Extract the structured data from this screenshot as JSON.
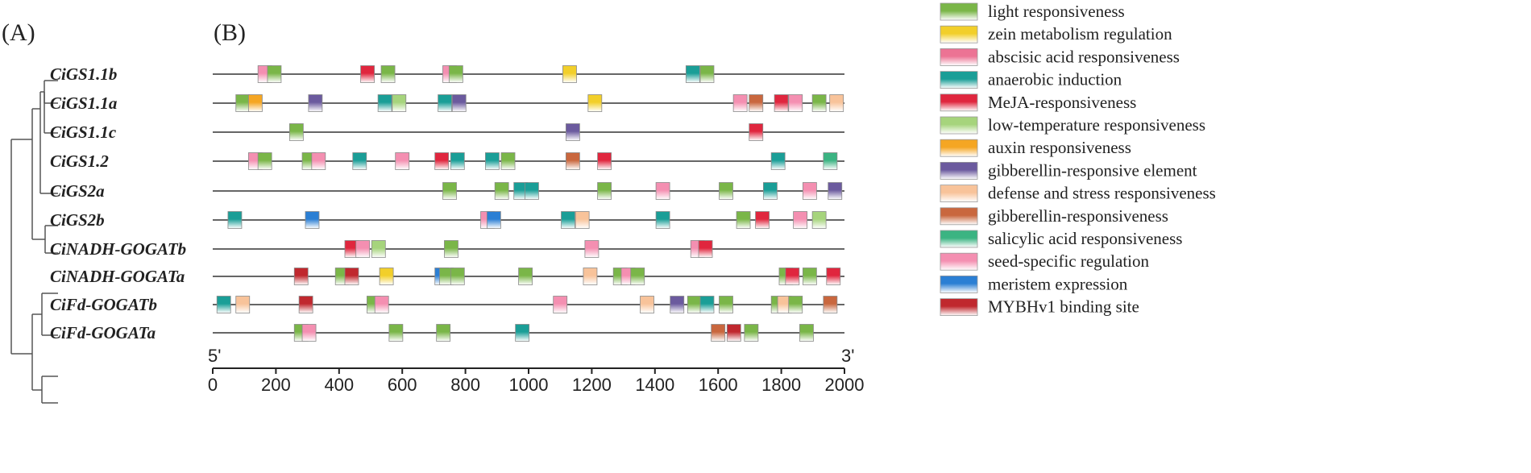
{
  "panels": {
    "a": "(A)",
    "b": "(B)"
  },
  "legend": [
    {
      "key": "light",
      "label": "light responsiveness",
      "color": "#7ab648"
    },
    {
      "key": "zein",
      "label": "zein metabolism regulation",
      "color": "#f2cf2a"
    },
    {
      "key": "aba",
      "label": "abscisic acid responsiveness",
      "color": "#ec7394"
    },
    {
      "key": "anaer",
      "label": "anaerobic induction",
      "color": "#1a9e97"
    },
    {
      "key": "meja",
      "label": "MeJA-responsiveness",
      "color": "#e0263e"
    },
    {
      "key": "lowtemp",
      "label": "low-temperature responsiveness",
      "color": "#a6d47c"
    },
    {
      "key": "auxin",
      "label": "auxin responsiveness",
      "color": "#f5a623"
    },
    {
      "key": "gare",
      "label": "gibberellin-responsive element",
      "color": "#6b5a9e"
    },
    {
      "key": "defense",
      "label": "defense and stress responsiveness",
      "color": "#f8c39a"
    },
    {
      "key": "gib",
      "label": "gibberellin-responsiveness",
      "color": "#c9673e"
    },
    {
      "key": "sa",
      "label": "salicylic acid responsiveness",
      "color": "#3bb482"
    },
    {
      "key": "seed",
      "label": "seed-specific regulation",
      "color": "#f48fb1"
    },
    {
      "key": "meri",
      "label": "meristem expression",
      "color": "#2b7fd4"
    },
    {
      "key": "myb",
      "label": "MYBHv1 binding site",
      "color": "#c0282e"
    }
  ],
  "axis": {
    "start_label": "5'",
    "end_label": "3'",
    "min": 0,
    "max": 2000,
    "ticks": [
      "0",
      "200",
      "400",
      "600",
      "800",
      "1000",
      "1200",
      "1400",
      "1600",
      "1800",
      "2000"
    ]
  },
  "genes": [
    {
      "name": "CiGS1.1b",
      "elements": [
        {
          "pos": 165,
          "type": "seed"
        },
        {
          "pos": 195,
          "type": "light"
        },
        {
          "pos": 490,
          "type": "meja"
        },
        {
          "pos": 555,
          "type": "light"
        },
        {
          "pos": 750,
          "type": "seed"
        },
        {
          "pos": 770,
          "type": "light"
        },
        {
          "pos": 1130,
          "type": "zein"
        },
        {
          "pos": 1520,
          "type": "anaer"
        },
        {
          "pos": 1565,
          "type": "light"
        }
      ]
    },
    {
      "name": "CiGS1.1a",
      "elements": [
        {
          "pos": 95,
          "type": "light"
        },
        {
          "pos": 135,
          "type": "auxin"
        },
        {
          "pos": 325,
          "type": "gare"
        },
        {
          "pos": 545,
          "type": "anaer"
        },
        {
          "pos": 590,
          "type": "lowtemp"
        },
        {
          "pos": 735,
          "type": "anaer"
        },
        {
          "pos": 780,
          "type": "gare"
        },
        {
          "pos": 1210,
          "type": "zein"
        },
        {
          "pos": 1670,
          "type": "seed"
        },
        {
          "pos": 1720,
          "type": "gib"
        },
        {
          "pos": 1800,
          "type": "meja"
        },
        {
          "pos": 1845,
          "type": "seed"
        },
        {
          "pos": 1920,
          "type": "light"
        },
        {
          "pos": 1975,
          "type": "defense"
        }
      ]
    },
    {
      "name": "CiGS1.1c",
      "elements": [
        {
          "pos": 265,
          "type": "light"
        },
        {
          "pos": 1140,
          "type": "gare"
        },
        {
          "pos": 1720,
          "type": "meja"
        }
      ]
    },
    {
      "name": "CiGS1.2",
      "elements": [
        {
          "pos": 135,
          "type": "seed"
        },
        {
          "pos": 165,
          "type": "light"
        },
        {
          "pos": 305,
          "type": "light"
        },
        {
          "pos": 335,
          "type": "seed"
        },
        {
          "pos": 465,
          "type": "anaer"
        },
        {
          "pos": 600,
          "type": "seed"
        },
        {
          "pos": 725,
          "type": "meja"
        },
        {
          "pos": 775,
          "type": "anaer"
        },
        {
          "pos": 885,
          "type": "anaer"
        },
        {
          "pos": 935,
          "type": "light"
        },
        {
          "pos": 1140,
          "type": "gib"
        },
        {
          "pos": 1240,
          "type": "meja"
        },
        {
          "pos": 1790,
          "type": "anaer"
        },
        {
          "pos": 1955,
          "type": "sa"
        }
      ]
    },
    {
      "name": "CiGS2a",
      "elements": [
        {
          "pos": 750,
          "type": "light"
        },
        {
          "pos": 915,
          "type": "light"
        },
        {
          "pos": 975,
          "type": "anaer"
        },
        {
          "pos": 1010,
          "type": "anaer"
        },
        {
          "pos": 1240,
          "type": "light"
        },
        {
          "pos": 1425,
          "type": "seed"
        },
        {
          "pos": 1625,
          "type": "light"
        },
        {
          "pos": 1765,
          "type": "anaer"
        },
        {
          "pos": 1890,
          "type": "seed"
        },
        {
          "pos": 1970,
          "type": "gare"
        }
      ]
    },
    {
      "name": "CiGS2b",
      "elements": [
        {
          "pos": 70,
          "type": "anaer"
        },
        {
          "pos": 315,
          "type": "meri"
        },
        {
          "pos": 870,
          "type": "seed"
        },
        {
          "pos": 890,
          "type": "meri"
        },
        {
          "pos": 1125,
          "type": "anaer"
        },
        {
          "pos": 1170,
          "type": "defense"
        },
        {
          "pos": 1425,
          "type": "anaer"
        },
        {
          "pos": 1680,
          "type": "light"
        },
        {
          "pos": 1740,
          "type": "meja"
        },
        {
          "pos": 1860,
          "type": "seed"
        },
        {
          "pos": 1920,
          "type": "lowtemp"
        }
      ]
    },
    {
      "name": "CiNADH-GOGATb",
      "elements": [
        {
          "pos": 440,
          "type": "meja"
        },
        {
          "pos": 475,
          "type": "seed"
        },
        {
          "pos": 525,
          "type": "lowtemp"
        },
        {
          "pos": 755,
          "type": "light"
        },
        {
          "pos": 1200,
          "type": "seed"
        },
        {
          "pos": 1535,
          "type": "seed"
        },
        {
          "pos": 1560,
          "type": "meja"
        }
      ]
    },
    {
      "name": "CiNADH-GOGATa",
      "elements": [
        {
          "pos": 280,
          "type": "myb"
        },
        {
          "pos": 410,
          "type": "light"
        },
        {
          "pos": 440,
          "type": "myb"
        },
        {
          "pos": 550,
          "type": "zein"
        },
        {
          "pos": 725,
          "type": "meri"
        },
        {
          "pos": 740,
          "type": "light"
        },
        {
          "pos": 775,
          "type": "light"
        },
        {
          "pos": 990,
          "type": "light"
        },
        {
          "pos": 1195,
          "type": "defense"
        },
        {
          "pos": 1290,
          "type": "light"
        },
        {
          "pos": 1315,
          "type": "seed"
        },
        {
          "pos": 1345,
          "type": "light"
        },
        {
          "pos": 1815,
          "type": "light"
        },
        {
          "pos": 1835,
          "type": "meja"
        },
        {
          "pos": 1890,
          "type": "light"
        },
        {
          "pos": 1965,
          "type": "meja"
        }
      ]
    },
    {
      "name": "CiFd-GOGATb",
      "elements": [
        {
          "pos": 35,
          "type": "anaer"
        },
        {
          "pos": 95,
          "type": "defense"
        },
        {
          "pos": 295,
          "type": "myb"
        },
        {
          "pos": 510,
          "type": "light"
        },
        {
          "pos": 535,
          "type": "seed"
        },
        {
          "pos": 1100,
          "type": "seed"
        },
        {
          "pos": 1375,
          "type": "defense"
        },
        {
          "pos": 1470,
          "type": "gare"
        },
        {
          "pos": 1525,
          "type": "light"
        },
        {
          "pos": 1565,
          "type": "anaer"
        },
        {
          "pos": 1625,
          "type": "light"
        },
        {
          "pos": 1790,
          "type": "light"
        },
        {
          "pos": 1810,
          "type": "defense"
        },
        {
          "pos": 1845,
          "type": "light"
        },
        {
          "pos": 1955,
          "type": "gib"
        }
      ]
    },
    {
      "name": "CiFd-GOGATa",
      "elements": [
        {
          "pos": 280,
          "type": "light"
        },
        {
          "pos": 305,
          "type": "seed"
        },
        {
          "pos": 580,
          "type": "light"
        },
        {
          "pos": 730,
          "type": "light"
        },
        {
          "pos": 980,
          "type": "anaer"
        },
        {
          "pos": 1600,
          "type": "gib"
        },
        {
          "pos": 1650,
          "type": "myb"
        },
        {
          "pos": 1705,
          "type": "light"
        },
        {
          "pos": 1880,
          "type": "light"
        }
      ]
    }
  ]
}
